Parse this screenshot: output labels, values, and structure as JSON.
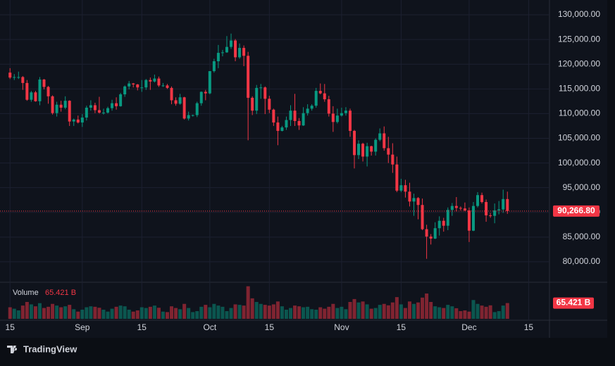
{
  "brand": "TradingView",
  "chart_data": {
    "type": "candlestick",
    "x": [
      0,
      1,
      2,
      3,
      4,
      5,
      6,
      7,
      8,
      9,
      10,
      11,
      12,
      13,
      14,
      15,
      16,
      17,
      18,
      19,
      20,
      21,
      22,
      23,
      24,
      25,
      26,
      27,
      28,
      29,
      30,
      31,
      32,
      33,
      34,
      35,
      36,
      37,
      38,
      39,
      40,
      41,
      42,
      43,
      44,
      45,
      46,
      47,
      48,
      49,
      50,
      51,
      52,
      53,
      54,
      55,
      56,
      57,
      58,
      59,
      60,
      61,
      62,
      63,
      64,
      65,
      66,
      67,
      68,
      69,
      70,
      71,
      72,
      73,
      74,
      75,
      76,
      77,
      78,
      79,
      80,
      81,
      82,
      83,
      84,
      85,
      86,
      87,
      88,
      89,
      90,
      91,
      92,
      93,
      94,
      95,
      96,
      97,
      98,
      99,
      100,
      101,
      102,
      103,
      104,
      105,
      106,
      107,
      108,
      109,
      110,
      111,
      112,
      113,
      114,
      115,
      116,
      117
    ],
    "open": [
      118300,
      117300,
      117400,
      117400,
      116200,
      112800,
      114300,
      112500,
      116900,
      115400,
      113500,
      110100,
      111800,
      111200,
      112600,
      108400,
      108800,
      108200,
      109200,
      111200,
      111700,
      110700,
      110200,
      110200,
      111100,
      112100,
      111500,
      113900,
      115500,
      116100,
      115900,
      115300,
      115300,
      116800,
      116500,
      117100,
      115700,
      115700,
      115200,
      112700,
      112000,
      113300,
      109000,
      109700,
      109700,
      112100,
      114400,
      114100,
      118600,
      120600,
      122300,
      122400,
      123500,
      124800,
      121400,
      123300,
      121700,
      113200,
      110600,
      115200,
      115300,
      113000,
      110800,
      108200,
      106500,
      107200,
      108700,
      110600,
      108500,
      107600,
      110100,
      111000,
      111600,
      114600,
      114100,
      112900,
      110000,
      108300,
      109600,
      110100,
      110600,
      106500,
      101600,
      103900,
      101300,
      103400,
      102300,
      104700,
      106000,
      103000,
      101700,
      99700,
      94400,
      95500,
      94200,
      92200,
      92900,
      91500,
      86600,
      85100,
      84700,
      86800,
      88300,
      87300,
      90500,
      91300,
      90900,
      90800,
      90400,
      86300,
      91300,
      93500,
      92100,
      89400,
      89300,
      90400,
      90600,
      92700
    ],
    "high": [
      119200,
      118000,
      118500,
      117600,
      116800,
      114600,
      114600,
      117400,
      117000,
      115600,
      113700,
      112400,
      112600,
      113500,
      112700,
      109000,
      109600,
      109900,
      111600,
      112700,
      112200,
      113400,
      111000,
      111400,
      112800,
      113300,
      114200,
      115700,
      116600,
      116200,
      116000,
      116800,
      117000,
      117300,
      117900,
      117500,
      116200,
      116000,
      115500,
      113300,
      114000,
      113400,
      110400,
      109800,
      112400,
      114500,
      114800,
      118600,
      121100,
      123900,
      122900,
      125700,
      126200,
      125100,
      124200,
      123800,
      122500,
      113500,
      115800,
      116000,
      115500,
      113600,
      111000,
      109400,
      107500,
      109400,
      111700,
      114000,
      109100,
      111300,
      111900,
      111900,
      115200,
      116100,
      116000,
      113600,
      111500,
      111000,
      111200,
      111300,
      111000,
      106700,
      104600,
      104100,
      104100,
      103500,
      105000,
      107000,
      107400,
      105300,
      104000,
      101300,
      96800,
      96600,
      96000,
      93800,
      93100,
      92800,
      87500,
      85600,
      88000,
      89200,
      88900,
      91000,
      91900,
      93100,
      91200,
      92000,
      91000,
      92100,
      94100,
      94000,
      92600,
      89900,
      91800,
      92300,
      94600,
      94200
    ],
    "low": [
      117000,
      116800,
      117000,
      114800,
      112600,
      112400,
      112400,
      111700,
      114900,
      112000,
      109800,
      109400,
      110400,
      110900,
      107500,
      107500,
      108000,
      107300,
      108600,
      110600,
      110100,
      110000,
      109800,
      110000,
      110600,
      110800,
      111400,
      113400,
      114900,
      115300,
      114700,
      114400,
      114800,
      114800,
      116300,
      115400,
      115400,
      115000,
      111900,
      111600,
      111800,
      108800,
      108600,
      109400,
      109300,
      111600,
      112700,
      113900,
      118300,
      119200,
      121600,
      122300,
      123100,
      120600,
      121100,
      119600,
      104600,
      109700,
      109900,
      113000,
      109900,
      110100,
      107500,
      103600,
      106400,
      106700,
      107500,
      107500,
      106700,
      107500,
      109600,
      110600,
      111200,
      113900,
      112400,
      109400,
      106300,
      108000,
      109400,
      109600,
      105300,
      98900,
      100800,
      100300,
      99300,
      101500,
      101500,
      104400,
      102500,
      100000,
      98000,
      94100,
      94100,
      93000,
      91200,
      89300,
      88600,
      86400,
      80600,
      83500,
      84600,
      85300,
      86100,
      86400,
      89300,
      90200,
      90400,
      90200,
      84000,
      86200,
      91000,
      91800,
      88100,
      88900,
      87800,
      89600,
      89900,
      89700
    ],
    "close": [
      117300,
      117400,
      117400,
      116200,
      112800,
      114300,
      112500,
      116900,
      115400,
      113500,
      110100,
      111800,
      111200,
      112600,
      108400,
      108800,
      108200,
      109200,
      111200,
      111700,
      110700,
      110200,
      110200,
      111100,
      112100,
      111500,
      113900,
      115500,
      116100,
      115900,
      115300,
      115300,
      116800,
      116500,
      117100,
      115700,
      115700,
      115200,
      112700,
      112000,
      113300,
      109000,
      109700,
      109700,
      112100,
      114400,
      114100,
      118600,
      120600,
      122300,
      122400,
      123500,
      124800,
      121400,
      123300,
      121700,
      113200,
      110600,
      115200,
      115300,
      113000,
      110800,
      108200,
      106500,
      107200,
      108700,
      110600,
      108500,
      107600,
      110100,
      111000,
      111600,
      114600,
      114100,
      112900,
      110000,
      108300,
      109600,
      110100,
      110600,
      106500,
      101600,
      103900,
      101300,
      103400,
      102300,
      104700,
      106000,
      103000,
      101700,
      99700,
      94400,
      95500,
      94200,
      92200,
      92900,
      91500,
      86600,
      85100,
      84700,
      86800,
      88300,
      87300,
      90500,
      91300,
      90900,
      90800,
      90400,
      86300,
      91300,
      93500,
      92100,
      89400,
      89300,
      90400,
      90600,
      92700,
      90266.8
    ],
    "up_color": "#089981",
    "down_color": "#f23645",
    "last_price": {
      "value": 90266.8,
      "label": "90,266.80"
    },
    "xlim": [
      -0.7,
      126.9
    ],
    "xticks": [
      {
        "value": 0,
        "label": "15"
      },
      {
        "value": 17,
        "label": "Sep"
      },
      {
        "value": 31,
        "label": "15"
      },
      {
        "value": 47,
        "label": "Oct"
      },
      {
        "value": 61,
        "label": "15"
      },
      {
        "value": 78,
        "label": "Nov"
      },
      {
        "value": 92,
        "label": "15"
      },
      {
        "value": 108,
        "label": "Dec"
      },
      {
        "value": 122,
        "label": "15"
      }
    ],
    "ylim": [
      76000,
      133000
    ],
    "yticks": [
      {
        "value": 80000,
        "label": "80,000.00"
      },
      {
        "value": 85000,
        "label": "85,000.00"
      },
      {
        "value": 90000,
        "label": "90,000.00"
      },
      {
        "value": 95000,
        "label": "95,000.00"
      },
      {
        "value": 100000,
        "label": "100,000.00"
      },
      {
        "value": 105000,
        "label": "105,000.00"
      },
      {
        "value": 110000,
        "label": "110,000.00"
      },
      {
        "value": 115000,
        "label": "115,000.00"
      },
      {
        "value": 120000,
        "label": "120,000.00"
      },
      {
        "value": 125000,
        "label": "125,000.00"
      },
      {
        "value": 130000,
        "label": "130,000.00"
      }
    ],
    "grid": true,
    "volume": {
      "name": "Volume",
      "ylim": [
        0,
        140
      ],
      "values": [
        48,
        42,
        35,
        55,
        70,
        60,
        52,
        65,
        45,
        50,
        62,
        55,
        48,
        52,
        58,
        40,
        30,
        38,
        48,
        52,
        50,
        46,
        38,
        30,
        42,
        50,
        55,
        52,
        38,
        30,
        35,
        48,
        45,
        50,
        55,
        46,
        30,
        28,
        52,
        45,
        40,
        62,
        45,
        28,
        32,
        50,
        58,
        48,
        62,
        55,
        50,
        32,
        45,
        60,
        58,
        55,
        135,
        85,
        70,
        62,
        58,
        55,
        60,
        72,
        52,
        38,
        45,
        55,
        52,
        48,
        50,
        40,
        38,
        48,
        42,
        50,
        62,
        45,
        50,
        40,
        70,
        82,
        68,
        72,
        60,
        42,
        45,
        58,
        62,
        56,
        68,
        90,
        60,
        45,
        72,
        62,
        68,
        88,
        105,
        70,
        52,
        48,
        45,
        58,
        52,
        44,
        32,
        35,
        30,
        78,
        62,
        55,
        50,
        56,
        28,
        32,
        55,
        65.421
      ],
      "value_labels": [
        null,
        null,
        null,
        null,
        null,
        null,
        null,
        null,
        null,
        null,
        null,
        null,
        null,
        null,
        null,
        null,
        null,
        null,
        null,
        null,
        null,
        null,
        null,
        null,
        null,
        null,
        null,
        null,
        null,
        null,
        null,
        null,
        null,
        null,
        null,
        null,
        null,
        null,
        null,
        null,
        null,
        null,
        null,
        null,
        null,
        null,
        null,
        null,
        null,
        null,
        null,
        null,
        null,
        null,
        null,
        null,
        null,
        null,
        null,
        null,
        null,
        null,
        null,
        null,
        null,
        null,
        null,
        null,
        null,
        null,
        null,
        null,
        null,
        null,
        null,
        null,
        null,
        null,
        null,
        null,
        null,
        null,
        null,
        null,
        null,
        null,
        null,
        null,
        null,
        null,
        null,
        null,
        null,
        null,
        null,
        null,
        null,
        null,
        null,
        null,
        null,
        null,
        null,
        null,
        null,
        null,
        null,
        null,
        null,
        null,
        null,
        null,
        null,
        null,
        null,
        null,
        null,
        "65.421 B"
      ]
    }
  }
}
